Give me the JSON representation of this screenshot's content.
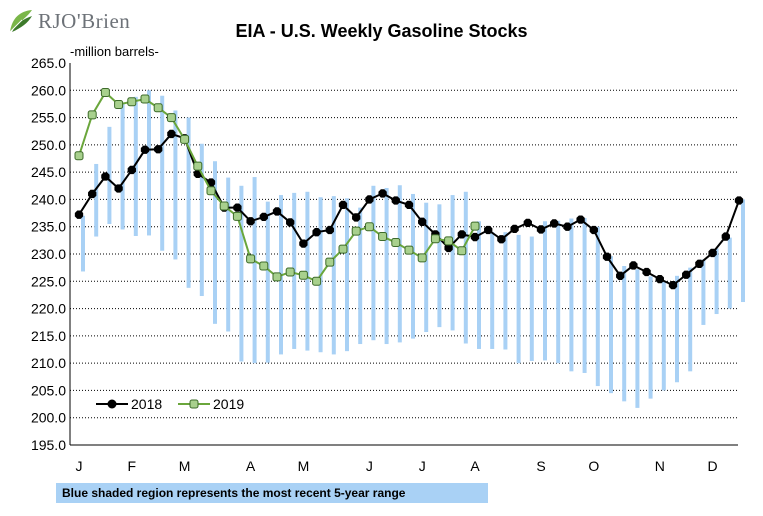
{
  "logo": {
    "text": "RJO'Brien",
    "icon": "rjo-brien-leaf-logo"
  },
  "footnote": "Blue shaded region represents the most recent 5-year range",
  "chart_data": {
    "type": "line",
    "title": "EIA - U.S. Weekly Gasoline Stocks",
    "ylabel": "-million barrels-",
    "ylim": [
      195,
      265
    ],
    "yticks": [
      "265.0",
      "260.0",
      "255.0",
      "250.0",
      "245.0",
      "240.0",
      "235.0",
      "230.0",
      "225.0",
      "220.0",
      "215.0",
      "210.0",
      "205.0",
      "200.0",
      "195.0"
    ],
    "grid": true,
    "legend_position": "bottom-left",
    "x_weeks": 52,
    "month_labels": [
      {
        "label": "J",
        "week": 1
      },
      {
        "label": "F",
        "week": 5
      },
      {
        "label": "M",
        "week": 9
      },
      {
        "label": "A",
        "week": 14
      },
      {
        "label": "M",
        "week": 18
      },
      {
        "label": "J",
        "week": 23
      },
      {
        "label": "J",
        "week": 27
      },
      {
        "label": "A",
        "week": 31
      },
      {
        "label": "S",
        "week": 36
      },
      {
        "label": "O",
        "week": 40
      },
      {
        "label": "N",
        "week": 45
      },
      {
        "label": "D",
        "week": 49
      }
    ],
    "range_5yr": {
      "color": "#a9d1f5",
      "low": [
        226.8,
        233.2,
        235.5,
        234.5,
        233.3,
        233.4,
        230.6,
        229.0,
        223.8,
        222.3,
        217.2,
        215.8,
        210.3,
        210.0,
        210.1,
        211.6,
        212.6,
        212.3,
        212.0,
        211.6,
        212.2,
        213.5,
        214.2,
        213.5,
        213.8,
        214.5,
        215.7,
        216.6,
        216.0,
        213.6,
        212.6,
        212.6,
        212.5,
        210.0,
        210.4,
        210.5,
        210.0,
        208.5,
        208.2,
        205.8,
        204.5,
        203.0,
        201.8,
        203.5,
        205.0,
        206.5,
        208.5,
        217.0,
        219.0,
        220.0,
        221.2
      ],
      "high": [
        237.0,
        246.5,
        253.3,
        257.5,
        258.8,
        260.0,
        259.0,
        256.3,
        255.0,
        250.2,
        247.0,
        244.0,
        242.5,
        244.1,
        239.6,
        240.8,
        241.2,
        241.4,
        240.4,
        240.6,
        240.2,
        238.5,
        242.5,
        242.1,
        242.6,
        241.0,
        239.4,
        239.1,
        240.8,
        241.4,
        236.0,
        234.0,
        234.0,
        233.5,
        233.2,
        236.0,
        236.1,
        236.5,
        236.6,
        235.0,
        229.6,
        227.8,
        227.2,
        225.9,
        225.0,
        226.0,
        227.5,
        229.0,
        231.0,
        233.0,
        240.0
      ]
    },
    "series": [
      {
        "name": "2018",
        "line_color": "#000000",
        "marker_color": "#000000",
        "values": [
          237.2,
          241.0,
          244.2,
          242.0,
          245.4,
          249.1,
          249.2,
          252.0,
          251.2,
          244.7,
          243.1,
          238.5,
          238.5,
          236.0,
          236.8,
          237.8,
          235.8,
          231.9,
          234.0,
          234.4,
          239.0,
          236.7,
          240.0,
          241.1,
          239.8,
          239.0,
          235.9,
          233.6,
          231.1,
          233.6,
          233.1,
          234.4,
          232.7,
          234.6,
          235.7,
          234.5,
          235.6,
          235.0,
          236.3,
          234.4,
          229.5,
          226.0,
          227.9,
          226.7,
          225.4,
          224.3,
          226.2,
          228.2,
          230.2,
          233.2,
          239.8
        ]
      },
      {
        "name": "2019",
        "line_color": "#6aa63b",
        "marker_color": "#a8d08d",
        "values": [
          248.0,
          255.5,
          259.6,
          257.4,
          257.9,
          258.4,
          256.8,
          255.0,
          251.0,
          246.1,
          241.6,
          238.8,
          236.9,
          229.1,
          227.8,
          225.8,
          226.7,
          226.1,
          225.0,
          228.5,
          230.9,
          234.2,
          235.0,
          233.2,
          232.1,
          230.7,
          229.3,
          232.8,
          232.4,
          230.6,
          235.1
        ]
      }
    ]
  }
}
